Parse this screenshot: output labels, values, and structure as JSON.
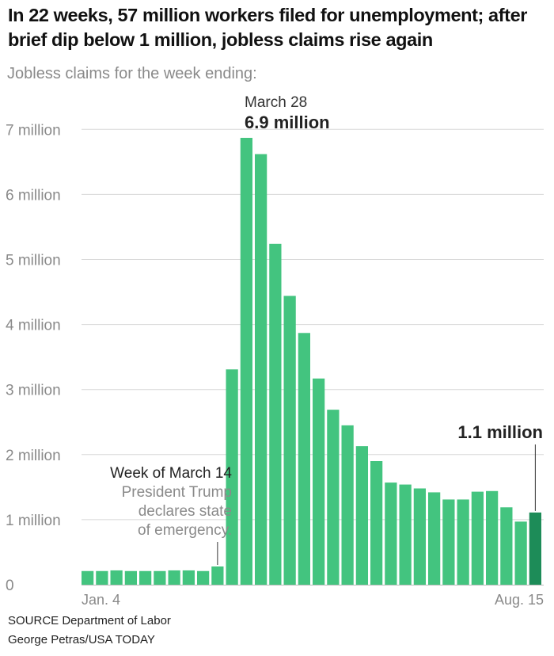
{
  "headline": "In 22 weeks, 57 million workers filed for unemployment; after brief dip below 1 million, jobless claims rise again",
  "subtitle": "Jobless claims for the week ending:",
  "source": "SOURCE Department of Labor",
  "credit": "George Petras/USA TODAY",
  "colors": {
    "bar": "#43c47f",
    "highlight": "#1d8c58",
    "grid": "#d8d8d8",
    "axis_text": "#8a8a8a"
  },
  "chart_data": {
    "type": "bar",
    "title": "Jobless claims for the week ending:",
    "xlabel": "",
    "ylabel": "",
    "ylim": [
      0,
      7
    ],
    "y_unit": "million",
    "y_ticks": [
      0,
      1,
      2,
      3,
      4,
      5,
      6,
      7
    ],
    "y_tick_labels": [
      "0",
      "1 million",
      "2 million",
      "3 million",
      "4 million",
      "5 million",
      "6 million",
      "7 million"
    ],
    "x_tick_labels": [
      "Jan. 4",
      "Aug. 15"
    ],
    "values": [
      0.21,
      0.21,
      0.22,
      0.21,
      0.21,
      0.21,
      0.22,
      0.22,
      0.21,
      0.28,
      3.31,
      6.87,
      6.62,
      5.24,
      4.44,
      3.87,
      3.17,
      2.69,
      2.45,
      2.13,
      1.9,
      1.57,
      1.54,
      1.48,
      1.42,
      1.31,
      1.31,
      1.43,
      1.44,
      1.19,
      0.97,
      1.11
    ],
    "highlight_index": 31,
    "annotations": {
      "peak": {
        "date": "March 28",
        "value": "6.9 million"
      },
      "latest": {
        "value": "1.1 million"
      },
      "emergency": {
        "week": "Week of March 14",
        "lines": [
          "President Trump",
          "declares state",
          "of emergency."
        ]
      }
    }
  }
}
